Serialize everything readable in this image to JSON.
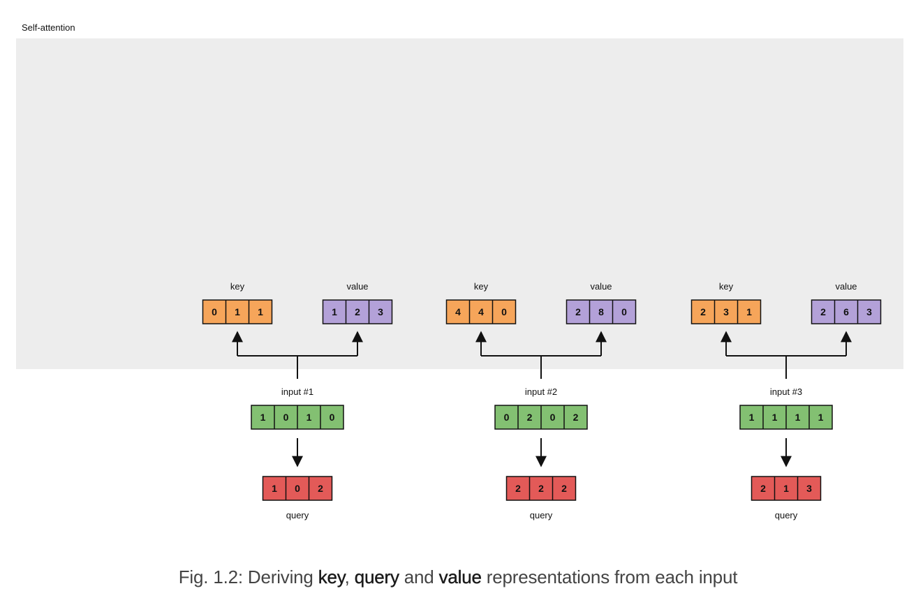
{
  "title": "Self-attention",
  "labels": {
    "key": "key",
    "value": "value",
    "query": "query"
  },
  "colors": {
    "panel": "#ededed",
    "key": "#f6a55a",
    "value": "#b3a1d8",
    "input": "#83c072",
    "query": "#e35a58",
    "line": "#111111"
  },
  "inputs": [
    {
      "label": "input #1",
      "input": [
        1,
        0,
        1,
        0
      ],
      "key": [
        0,
        1,
        1
      ],
      "value": [
        1,
        2,
        3
      ],
      "query": [
        1,
        0,
        2
      ]
    },
    {
      "label": "input #2",
      "input": [
        0,
        2,
        0,
        2
      ],
      "key": [
        4,
        4,
        0
      ],
      "value": [
        2,
        8,
        0
      ],
      "query": [
        2,
        2,
        2
      ]
    },
    {
      "label": "input #3",
      "input": [
        1,
        1,
        1,
        1
      ],
      "key": [
        2,
        3,
        1
      ],
      "value": [
        2,
        6,
        3
      ],
      "query": [
        2,
        1,
        3
      ]
    }
  ],
  "caption": {
    "prefix": "Fig. 1.2: Deriving ",
    "key": "key",
    "sep1": ", ",
    "query": "query",
    "sep2": " and ",
    "value": "value",
    "suffix": " representations from each input"
  }
}
